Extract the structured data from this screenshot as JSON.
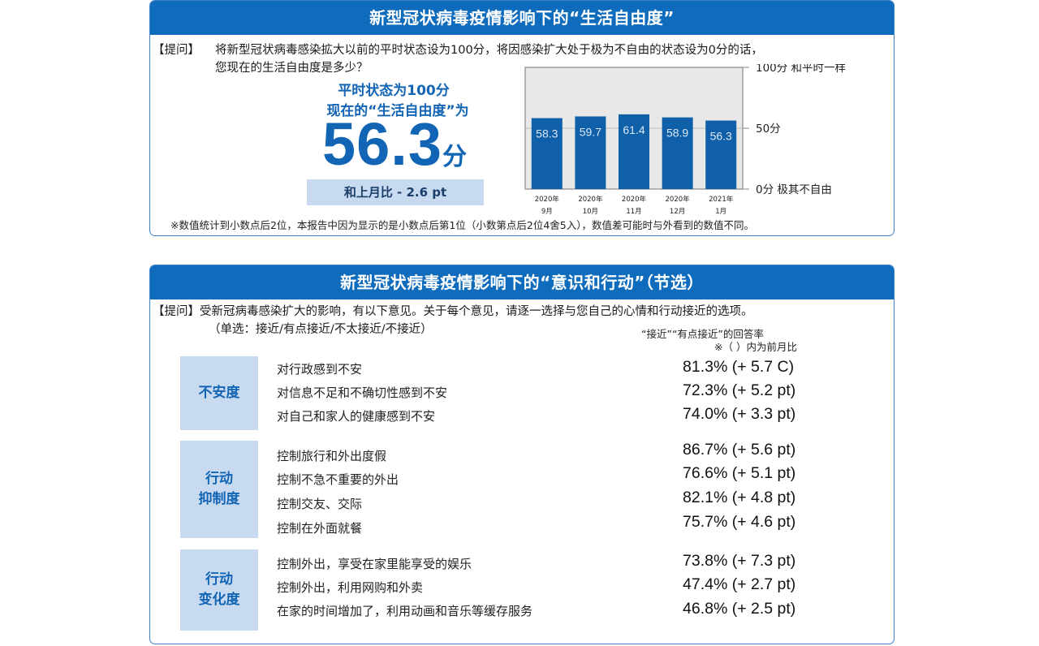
{
  "panel1": {
    "title": "新型冠状病毒疫情影响下的“生活自由度”",
    "question_tag": "【提问】",
    "question_line1": "将新型冠状病毒感染拡大以前的平时状态设为100分，将因感染扩大处于极为不自由的状态设为0分的话，",
    "question_line2": "您现在的生活自由度是多少？",
    "headline1": "平时状态为100分",
    "headline2": "现在的“生活自由度”为",
    "big_value": "56.3",
    "big_unit": "分",
    "mom": "和上月比 - 2.6 pt",
    "note": "※数值统计到小数点后2位，本报告中因为显示的是小数点后第1位（小数第点后2位4舍5入），数值差可能时与外看到的数值不同。"
  },
  "chart_data": {
    "type": "bar",
    "categories": [
      [
        "2020年",
        "9月"
      ],
      [
        "2020年",
        "10月"
      ],
      [
        "2020年",
        "11月"
      ],
      [
        "2020年",
        "12月"
      ],
      [
        "2021年",
        "1月"
      ]
    ],
    "values": [
      58.3,
      59.7,
      61.4,
      58.9,
      56.3
    ],
    "value_labels": [
      "58.3",
      "59.7",
      "61.4",
      "58.9",
      "56.3"
    ],
    "ylim": [
      0,
      100
    ],
    "grid": true,
    "y_annotations": [
      {
        "value": 100,
        "label": "100分 和平时一样"
      },
      {
        "value": 50,
        "label": "50分"
      },
      {
        "value": 0,
        "label": "0分 极其不自由"
      }
    ],
    "colors": {
      "bar": "#0f60a8",
      "plot_bg": "#e8e8e8",
      "frame": "#888888",
      "label": "#dbe7f5"
    }
  },
  "panel2": {
    "title": "新型冠状病毒疫情影响下的“意识和行动”（节选）",
    "question_line1": "【提问】受新冠病毒感染扩大的影响，有以下意见。关于每个意见，请逐一选择与您自己的心情和行动接近的选项。",
    "question_line2": "（单选：接近/有点接近/不太接近/不接近）",
    "col_header1": "“接近”“有点接近”的回答率",
    "col_header2": "※（ ）内为前月比",
    "groups": [
      {
        "label_lines": [
          "不安度"
        ],
        "items": [
          {
            "text": "对行政感到不安",
            "value": "81.3% (+ 5.7 C)"
          },
          {
            "text": "对信息不足和不确切性感到不安",
            "value": "72.3% (+ 5.2 pt)"
          },
          {
            "text": "对自己和家人的健康感到不安",
            "value": "74.0% (+ 3.3 pt)"
          }
        ]
      },
      {
        "label_lines": [
          "行动",
          "抑制度"
        ],
        "items": [
          {
            "text": "控制旅行和外出度假",
            "value": "86.7% (+ 5.6 pt)"
          },
          {
            "text": "控制不急不重要的外出",
            "value": "76.6% (+ 5.1 pt)"
          },
          {
            "text": "控制交友、交际",
            "value": "82.1% (+ 4.8 pt)"
          },
          {
            "text": "控制在外面就餐",
            "value": "75.7% (+ 4.6 pt)"
          }
        ]
      },
      {
        "label_lines": [
          "行动",
          "变化度"
        ],
        "items": [
          {
            "text": "控制外出，享受在家里能享受的娱乐",
            "value": "73.8% (+ 7.3 pt)"
          },
          {
            "text": "控制外出，利用网购和外卖",
            "value": "47.4% (+ 2.7 pt)"
          },
          {
            "text": "在家的时间增加了，利用动画和音乐等缓存服务",
            "value": "46.8% (+ 2.5 pt)"
          }
        ]
      }
    ]
  }
}
